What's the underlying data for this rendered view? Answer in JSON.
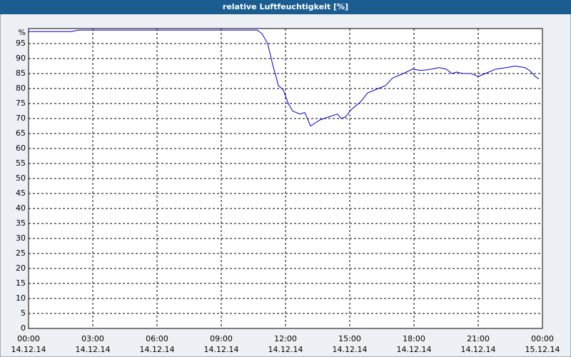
{
  "chart_data": {
    "type": "line",
    "title": "relative Luftfeuchtigkeit [%]",
    "x": [
      0,
      2,
      2.33,
      10.67,
      10.9,
      11.17,
      11.4,
      11.67,
      11.9,
      12.13,
      12.33,
      12.67,
      12.9,
      13.17,
      13.6,
      14,
      14.43,
      14.6,
      14.8,
      15.07,
      15.5,
      15.83,
      16.33,
      16.67,
      17,
      17.5,
      17.93,
      18.33,
      18.83,
      19.17,
      19.5,
      19.77,
      20,
      20.27,
      20.67,
      21,
      21.33,
      21.83,
      22.33,
      22.73,
      23.17,
      23.4,
      23.67,
      23.83
    ],
    "series": [
      {
        "color": "#0000cc",
        "values": [
          99,
          99,
          99.5,
          99.5,
          98.3,
          95,
          88,
          81,
          79.5,
          75,
          72.5,
          71.5,
          72,
          67.5,
          69.5,
          70.5,
          71.5,
          70,
          70.5,
          73,
          75.5,
          78.5,
          80,
          81,
          83.5,
          85,
          86.5,
          86,
          86.5,
          87,
          86.5,
          85,
          85.5,
          85,
          85,
          84,
          85,
          86.5,
          87,
          87.5,
          87,
          86,
          84,
          83.2
        ]
      }
    ],
    "xlim": [
      0,
      24
    ],
    "xticks": [
      {
        "value": 0,
        "label": "00:00",
        "date": "14.12.14"
      },
      {
        "value": 3,
        "label": "03:00",
        "date": "14.12.14"
      },
      {
        "value": 6,
        "label": "06:00",
        "date": "14.12.14"
      },
      {
        "value": 9,
        "label": "09:00",
        "date": "14.12.14"
      },
      {
        "value": 12,
        "label": "12:00",
        "date": "14.12.14"
      },
      {
        "value": 15,
        "label": "15:00",
        "date": "14.12.14"
      },
      {
        "value": 18,
        "label": "18:00",
        "date": "14.12.14"
      },
      {
        "value": 21,
        "label": "21:00",
        "date": "14.12.14"
      },
      {
        "value": 24,
        "label": "00:00",
        "date": "15.12.14"
      }
    ],
    "ylim": [
      0,
      100
    ],
    "yticks": [
      0,
      5,
      10,
      15,
      20,
      25,
      30,
      35,
      40,
      45,
      50,
      55,
      60,
      65,
      70,
      75,
      80,
      85,
      90,
      95,
      {
        "value": 100,
        "label": "%"
      }
    ],
    "grid": true
  }
}
